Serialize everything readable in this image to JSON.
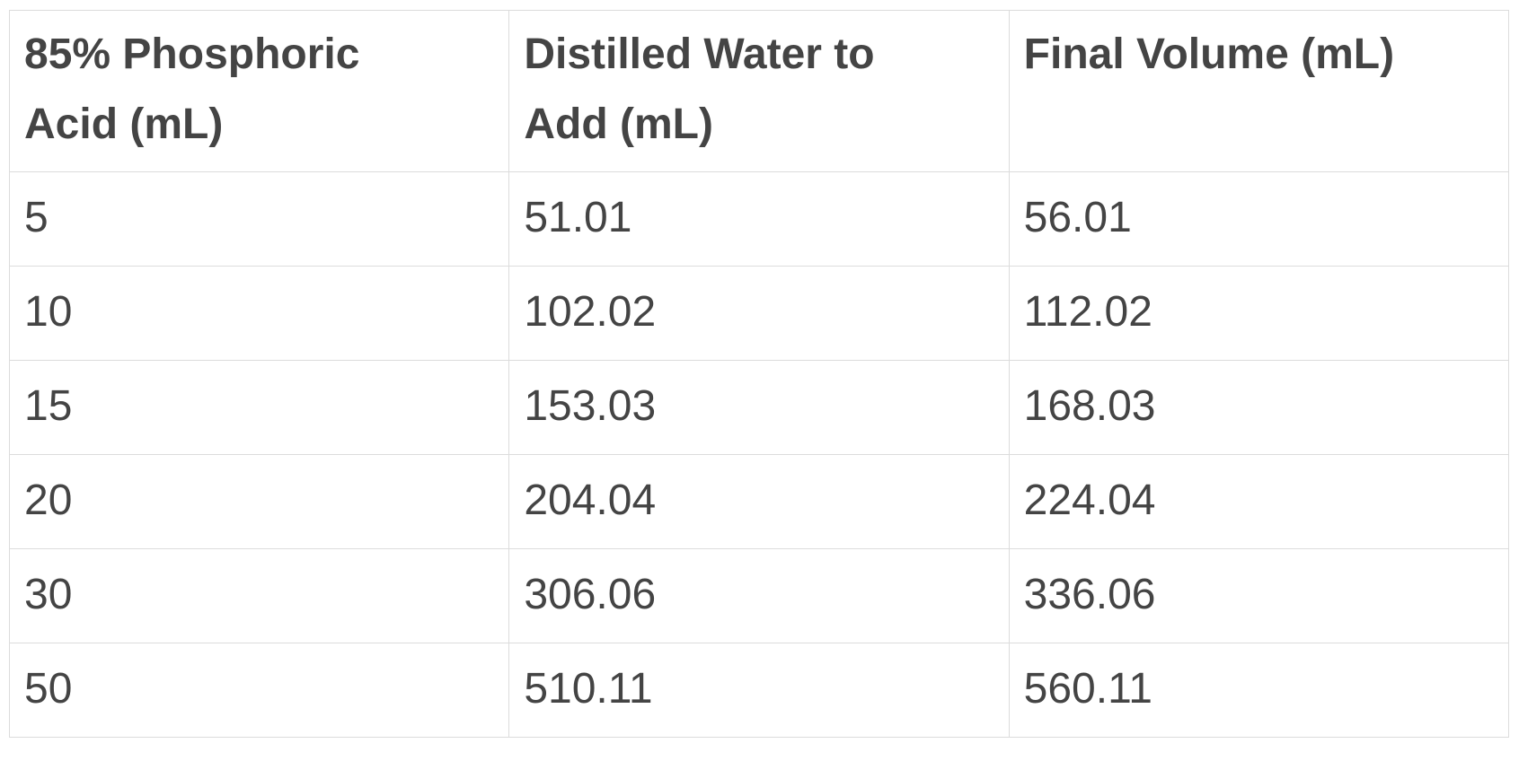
{
  "table": {
    "header": [
      "85% Phosphoric Acid (mL)",
      "Distilled Water to Add (mL)",
      "Final Volume (mL)"
    ],
    "rows": [
      [
        "5",
        "51.01",
        "56.01"
      ],
      [
        "10",
        "102.02",
        "112.02"
      ],
      [
        "15",
        "153.03",
        "168.03"
      ],
      [
        "20",
        "204.04",
        "224.04"
      ],
      [
        "30",
        "306.06",
        "336.06"
      ],
      [
        "50",
        "510.11",
        "560.11"
      ]
    ]
  }
}
